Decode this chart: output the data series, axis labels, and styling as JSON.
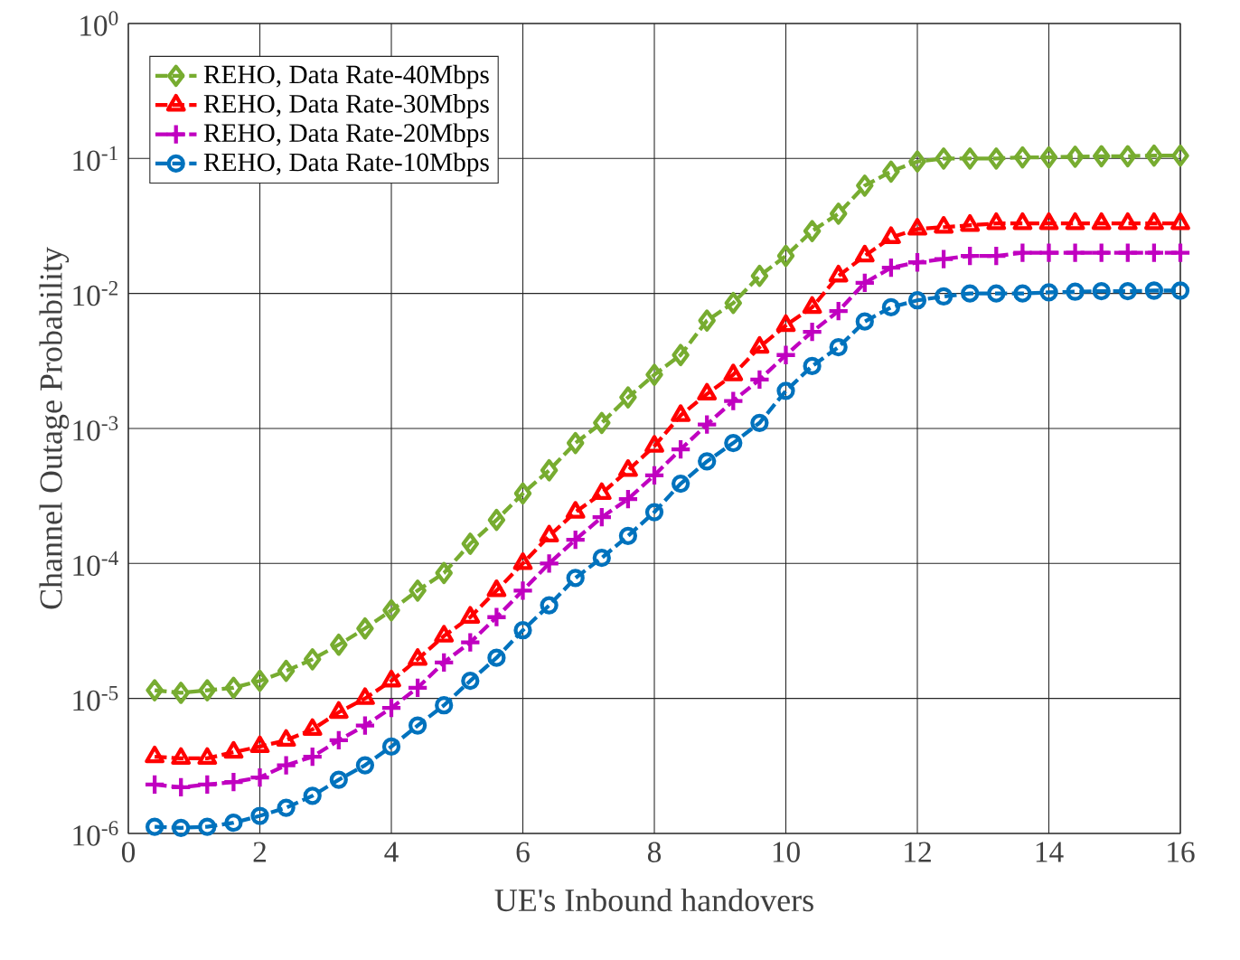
{
  "chart_data": {
    "type": "line",
    "xlabel": "UE's Inbound handovers",
    "ylabel": "Channel Outage Probability",
    "x": [
      0.4,
      0.8,
      1.2,
      1.6,
      2.0,
      2.4,
      2.8,
      3.2,
      3.6,
      4.0,
      4.4,
      4.8,
      5.2,
      5.6,
      6.0,
      6.4,
      6.8,
      7.2,
      7.6,
      8.0,
      8.4,
      8.8,
      9.2,
      9.6,
      10.0,
      10.4,
      10.8,
      11.2,
      11.6,
      12.0,
      12.4,
      12.8,
      13.2,
      13.6,
      14.0,
      14.4,
      14.8,
      15.2,
      15.6,
      16.0
    ],
    "series": [
      {
        "name": "REHO, Data Rate-40Mbps",
        "color": "#77ac30",
        "marker": "diamond",
        "values": [
          1.15e-05,
          1.1e-05,
          1.15e-05,
          1.2e-05,
          1.35e-05,
          1.6e-05,
          1.95e-05,
          2.5e-05,
          3.3e-05,
          4.5e-05,
          6.3e-05,
          8.5e-05,
          0.00014,
          0.00021,
          0.00033,
          0.00049,
          0.00078,
          0.0011,
          0.0017,
          0.0025,
          0.0035,
          0.0063,
          0.0085,
          0.0135,
          0.019,
          0.029,
          0.039,
          0.063,
          0.08,
          0.095,
          0.1,
          0.1,
          0.1,
          0.102,
          0.102,
          0.103,
          0.104,
          0.104,
          0.105,
          0.105
        ]
      },
      {
        "name": "REHO, Data Rate-30Mbps",
        "color": "#ff0000",
        "marker": "triangle",
        "values": [
          3.7e-06,
          3.6e-06,
          3.6e-06,
          4e-06,
          4.4e-06,
          4.9e-06,
          5.9e-06,
          7.9e-06,
          1e-05,
          1.35e-05,
          1.95e-05,
          2.9e-05,
          4e-05,
          6.3e-05,
          0.0001,
          0.00016,
          0.00024,
          0.00033,
          0.00049,
          0.00074,
          0.00125,
          0.0018,
          0.0025,
          0.004,
          0.0058,
          0.0079,
          0.0135,
          0.019,
          0.026,
          0.03,
          0.031,
          0.032,
          0.033,
          0.033,
          0.033,
          0.033,
          0.033,
          0.033,
          0.033,
          0.033
        ]
      },
      {
        "name": "REHO, Data Rate-20Mbps",
        "color": "#c000c0",
        "marker": "cross",
        "values": [
          2.3e-06,
          2.2e-06,
          2.3e-06,
          2.4e-06,
          2.6e-06,
          3.2e-06,
          3.7e-06,
          4.9e-06,
          6.3e-06,
          8.5e-06,
          1.2e-05,
          1.85e-05,
          2.6e-05,
          4e-05,
          6.3e-05,
          0.0001,
          0.00015,
          0.00022,
          0.0003,
          0.00045,
          0.0007,
          0.00107,
          0.0016,
          0.0023,
          0.0035,
          0.0052,
          0.0074,
          0.012,
          0.0155,
          0.017,
          0.018,
          0.019,
          0.019,
          0.02,
          0.02,
          0.02,
          0.02,
          0.02,
          0.02,
          0.02
        ]
      },
      {
        "name": "REHO, Data Rate-10Mbps",
        "color": "#0072bd",
        "marker": "circle",
        "values": [
          1.12e-06,
          1.1e-06,
          1.12e-06,
          1.2e-06,
          1.35e-06,
          1.55e-06,
          1.9e-06,
          2.5e-06,
          3.2e-06,
          4.4e-06,
          6.3e-06,
          8.9e-06,
          1.35e-05,
          2e-05,
          3.2e-05,
          4.9e-05,
          7.8e-05,
          0.00011,
          0.00016,
          0.00024,
          0.00039,
          0.00057,
          0.00078,
          0.0011,
          0.0019,
          0.0029,
          0.004,
          0.0062,
          0.0079,
          0.0089,
          0.0095,
          0.01,
          0.01,
          0.01,
          0.0102,
          0.0103,
          0.0104,
          0.0104,
          0.0105,
          0.0105
        ]
      }
    ],
    "xlim": [
      0,
      16
    ],
    "xticks": [
      0,
      2,
      4,
      6,
      8,
      10,
      12,
      14,
      16
    ],
    "ylim": [
      1e-06,
      1
    ],
    "yticks": [
      {
        "value": 1e-06,
        "label": "10$^{-6}$"
      },
      {
        "value": 1e-05,
        "label": "10$^{-5}$"
      },
      {
        "value": 0.0001,
        "label": "10$^{-4}$"
      },
      {
        "value": 0.001,
        "label": "10$^{-3}$"
      },
      {
        "value": 0.01,
        "label": "10$^{-2}$"
      },
      {
        "value": 0.1,
        "label": "10$^{-1}$"
      },
      {
        "value": 1,
        "label": "10$^{0}$"
      }
    ],
    "log": "y",
    "grid": true,
    "legend": "top left",
    "line_style": "dashed"
  }
}
